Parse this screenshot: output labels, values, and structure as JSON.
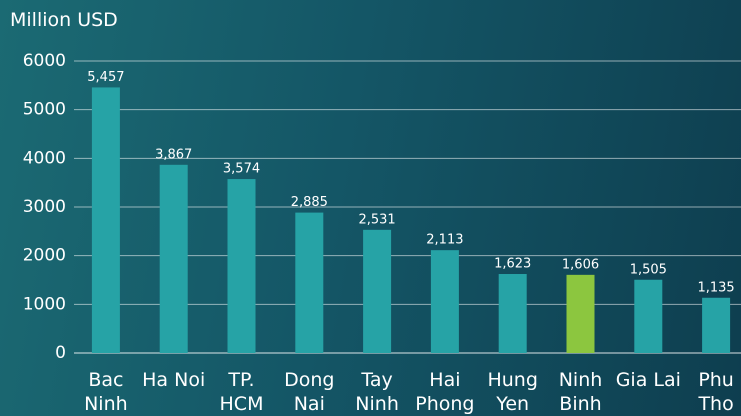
{
  "chart_data": {
    "type": "bar",
    "y_axis_label": "Million USD",
    "categories": [
      "Bac Ninh",
      "Ha Noi",
      "TP. HCM",
      "Dong Nai",
      "Tay Ninh",
      "Hai Phong",
      "Hung Yen",
      "Ninh Binh",
      "Gia Lai",
      "Phu Tho"
    ],
    "values": [
      5457,
      3867,
      3574,
      2885,
      2531,
      2113,
      1623,
      1606,
      1505,
      1135
    ],
    "value_labels": [
      "5,457",
      "3,867",
      "3,574",
      "2,885",
      "2,531",
      "2,113",
      "1,623",
      "1,606",
      "1,505",
      "1,135"
    ],
    "colors": [
      "#26a3a6",
      "#26a3a6",
      "#26a3a6",
      "#26a3a6",
      "#26a3a6",
      "#26a3a6",
      "#26a3a6",
      "#8cc63f",
      "#26a3a6",
      "#26a3a6"
    ],
    "ylim": [
      0,
      6000
    ],
    "yticks": [
      0,
      1000,
      2000,
      3000,
      4000,
      5000,
      6000
    ],
    "grid": true
  }
}
